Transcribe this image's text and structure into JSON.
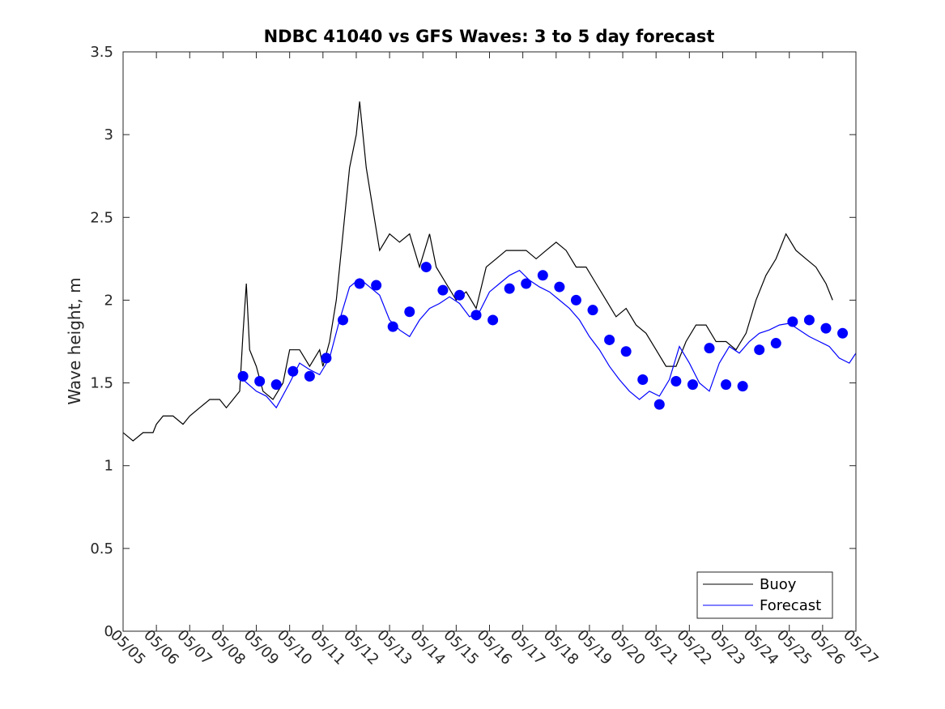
{
  "chart_data": {
    "type": "line",
    "title": "NDBC 41040 vs GFS Waves: 3 to 5 day forecast",
    "xlabel": "",
    "ylabel": "Wave height, m",
    "ylim": [
      0,
      3.5
    ],
    "yticks": [
      "0",
      "0.5",
      "1",
      "1.5",
      "2",
      "2.5",
      "3",
      "3.5"
    ],
    "xticks": [
      "05/05",
      "05/06",
      "05/07",
      "05/08",
      "05/09",
      "05/10",
      "05/11",
      "05/12",
      "05/13",
      "05/14",
      "05/15",
      "05/16",
      "05/17",
      "05/18",
      "05/19",
      "05/20",
      "05/21",
      "05/22",
      "05/23",
      "05/24",
      "05/25",
      "05/26",
      "05/27"
    ],
    "xlim_days": [
      0,
      22
    ],
    "grid": false,
    "legend": {
      "position": "bottom-right",
      "entries": [
        "Buoy",
        "Forecast"
      ]
    },
    "colors": {
      "buoy": "#000000",
      "forecast": "#0000ff",
      "markers": "#0000ff"
    },
    "series": [
      {
        "name": "Buoy",
        "style": "line",
        "points": [
          [
            0,
            1.2
          ],
          [
            0.3,
            1.15
          ],
          [
            0.6,
            1.2
          ],
          [
            0.9,
            1.2
          ],
          [
            1.0,
            1.25
          ],
          [
            1.2,
            1.3
          ],
          [
            1.5,
            1.3
          ],
          [
            1.8,
            1.25
          ],
          [
            2.0,
            1.3
          ],
          [
            2.3,
            1.35
          ],
          [
            2.6,
            1.4
          ],
          [
            2.9,
            1.4
          ],
          [
            3.1,
            1.35
          ],
          [
            3.3,
            1.4
          ],
          [
            3.5,
            1.45
          ],
          [
            3.6,
            1.8
          ],
          [
            3.7,
            2.1
          ],
          [
            3.8,
            1.7
          ],
          [
            4.0,
            1.6
          ],
          [
            4.2,
            1.45
          ],
          [
            4.5,
            1.4
          ],
          [
            4.8,
            1.5
          ],
          [
            5.0,
            1.7
          ],
          [
            5.3,
            1.7
          ],
          [
            5.6,
            1.6
          ],
          [
            5.9,
            1.7
          ],
          [
            6.0,
            1.6
          ],
          [
            6.2,
            1.75
          ],
          [
            6.4,
            2.0
          ],
          [
            6.6,
            2.4
          ],
          [
            6.8,
            2.8
          ],
          [
            7.0,
            3.0
          ],
          [
            7.1,
            3.2
          ],
          [
            7.2,
            3.0
          ],
          [
            7.3,
            2.8
          ],
          [
            7.5,
            2.55
          ],
          [
            7.7,
            2.3
          ],
          [
            8.0,
            2.4
          ],
          [
            8.3,
            2.35
          ],
          [
            8.6,
            2.4
          ],
          [
            8.9,
            2.2
          ],
          [
            9.2,
            2.4
          ],
          [
            9.4,
            2.2
          ],
          [
            9.7,
            2.1
          ],
          [
            10.0,
            2.0
          ],
          [
            10.3,
            2.05
          ],
          [
            10.6,
            1.95
          ],
          [
            10.9,
            2.2
          ],
          [
            11.2,
            2.25
          ],
          [
            11.5,
            2.3
          ],
          [
            11.8,
            2.3
          ],
          [
            12.1,
            2.3
          ],
          [
            12.4,
            2.25
          ],
          [
            12.7,
            2.3
          ],
          [
            13.0,
            2.35
          ],
          [
            13.3,
            2.3
          ],
          [
            13.6,
            2.2
          ],
          [
            13.9,
            2.2
          ],
          [
            14.2,
            2.1
          ],
          [
            14.5,
            2.0
          ],
          [
            14.8,
            1.9
          ],
          [
            15.1,
            1.95
          ],
          [
            15.4,
            1.85
          ],
          [
            15.7,
            1.8
          ],
          [
            16.0,
            1.7
          ],
          [
            16.3,
            1.6
          ],
          [
            16.6,
            1.6
          ],
          [
            16.9,
            1.75
          ],
          [
            17.2,
            1.85
          ],
          [
            17.5,
            1.85
          ],
          [
            17.8,
            1.75
          ],
          [
            18.1,
            1.75
          ],
          [
            18.4,
            1.7
          ],
          [
            18.7,
            1.8
          ],
          [
            19.0,
            2.0
          ],
          [
            19.3,
            2.15
          ],
          [
            19.6,
            2.25
          ],
          [
            19.9,
            2.4
          ],
          [
            20.2,
            2.3
          ],
          [
            20.5,
            2.25
          ],
          [
            20.8,
            2.2
          ],
          [
            21.1,
            2.1
          ],
          [
            21.3,
            2.0
          ]
        ]
      },
      {
        "name": "Forecast",
        "style": "line",
        "points": [
          [
            3.6,
            1.52
          ],
          [
            4.0,
            1.45
          ],
          [
            4.3,
            1.42
          ],
          [
            4.6,
            1.35
          ],
          [
            5.0,
            1.5
          ],
          [
            5.3,
            1.62
          ],
          [
            5.6,
            1.58
          ],
          [
            5.9,
            1.55
          ],
          [
            6.2,
            1.65
          ],
          [
            6.5,
            1.88
          ],
          [
            6.8,
            2.08
          ],
          [
            7.1,
            2.13
          ],
          [
            7.4,
            2.08
          ],
          [
            7.7,
            2.03
          ],
          [
            8.0,
            1.88
          ],
          [
            8.3,
            1.82
          ],
          [
            8.6,
            1.78
          ],
          [
            8.9,
            1.88
          ],
          [
            9.2,
            1.95
          ],
          [
            9.5,
            1.98
          ],
          [
            9.8,
            2.02
          ],
          [
            10.1,
            1.98
          ],
          [
            10.4,
            1.9
          ],
          [
            10.7,
            1.93
          ],
          [
            11.0,
            2.05
          ],
          [
            11.3,
            2.1
          ],
          [
            11.6,
            2.15
          ],
          [
            11.9,
            2.18
          ],
          [
            12.2,
            2.12
          ],
          [
            12.5,
            2.08
          ],
          [
            12.8,
            2.05
          ],
          [
            13.1,
            2.0
          ],
          [
            13.4,
            1.95
          ],
          [
            13.7,
            1.88
          ],
          [
            14.0,
            1.78
          ],
          [
            14.3,
            1.7
          ],
          [
            14.6,
            1.6
          ],
          [
            14.9,
            1.52
          ],
          [
            15.2,
            1.45
          ],
          [
            15.5,
            1.4
          ],
          [
            15.8,
            1.45
          ],
          [
            16.1,
            1.42
          ],
          [
            16.4,
            1.52
          ],
          [
            16.7,
            1.72
          ],
          [
            17.0,
            1.62
          ],
          [
            17.3,
            1.5
          ],
          [
            17.6,
            1.45
          ],
          [
            17.9,
            1.62
          ],
          [
            18.2,
            1.72
          ],
          [
            18.5,
            1.68
          ],
          [
            18.8,
            1.75
          ],
          [
            19.1,
            1.8
          ],
          [
            19.4,
            1.82
          ],
          [
            19.7,
            1.85
          ],
          [
            20.0,
            1.86
          ],
          [
            20.3,
            1.82
          ],
          [
            20.6,
            1.78
          ],
          [
            20.9,
            1.75
          ],
          [
            21.2,
            1.72
          ],
          [
            21.5,
            1.65
          ],
          [
            21.8,
            1.62
          ],
          [
            22.0,
            1.68
          ]
        ]
      },
      {
        "name": "Forecast markers",
        "style": "marker",
        "points": [
          [
            3.6,
            1.54
          ],
          [
            4.1,
            1.51
          ],
          [
            4.6,
            1.49
          ],
          [
            5.1,
            1.57
          ],
          [
            5.6,
            1.54
          ],
          [
            6.1,
            1.65
          ],
          [
            6.6,
            1.88
          ],
          [
            7.1,
            2.1
          ],
          [
            7.6,
            2.09
          ],
          [
            8.1,
            1.84
          ],
          [
            8.6,
            1.93
          ],
          [
            9.1,
            2.2
          ],
          [
            9.6,
            2.06
          ],
          [
            10.1,
            2.03
          ],
          [
            10.6,
            1.91
          ],
          [
            11.1,
            1.88
          ],
          [
            11.6,
            2.07
          ],
          [
            12.1,
            2.1
          ],
          [
            12.6,
            2.15
          ],
          [
            13.1,
            2.08
          ],
          [
            13.6,
            2.0
          ],
          [
            14.1,
            1.94
          ],
          [
            14.6,
            1.76
          ],
          [
            15.1,
            1.69
          ],
          [
            15.6,
            1.52
          ],
          [
            16.1,
            1.37
          ],
          [
            16.6,
            1.51
          ],
          [
            17.1,
            1.49
          ],
          [
            17.6,
            1.71
          ],
          [
            18.1,
            1.49
          ],
          [
            18.6,
            1.48
          ],
          [
            19.1,
            1.7
          ],
          [
            19.6,
            1.74
          ],
          [
            20.1,
            1.87
          ],
          [
            20.6,
            1.88
          ],
          [
            21.1,
            1.83
          ],
          [
            21.6,
            1.8
          ]
        ]
      }
    ]
  }
}
